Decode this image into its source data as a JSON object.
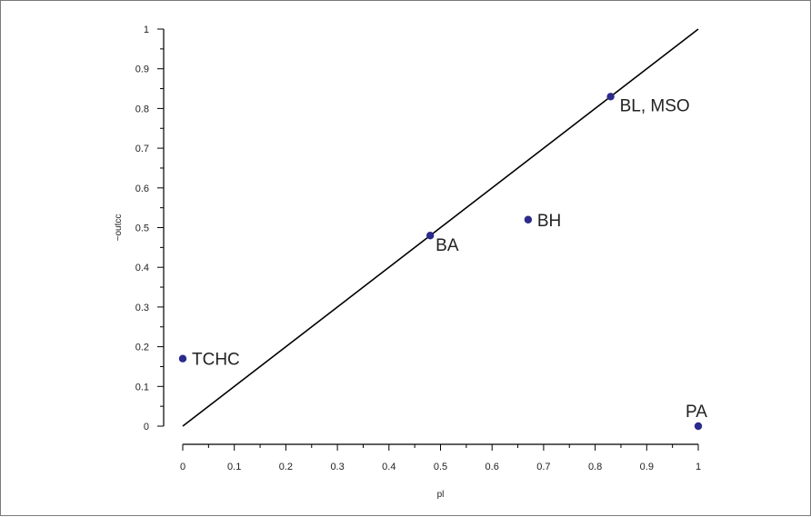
{
  "chart_data": {
    "type": "scatter",
    "xlabel": "pl",
    "ylabel": "~outcc",
    "xlim": [
      0,
      1
    ],
    "ylim": [
      0,
      1
    ],
    "x_ticks": [
      "0",
      "0.1",
      "0.2",
      "0.3",
      "0.4",
      "0.5",
      "0.6",
      "0.7",
      "0.8",
      "0.9",
      "1"
    ],
    "y_ticks": [
      "0",
      "0.1",
      "0.2",
      "0.3",
      "0.4",
      "0.5",
      "0.6",
      "0.7",
      "0.8",
      "0.9",
      "1"
    ],
    "points": [
      {
        "label": "TCHC",
        "x": 0.0,
        "y": 0.17
      },
      {
        "label": "BA",
        "x": 0.48,
        "y": 0.48
      },
      {
        "label": "BH",
        "x": 0.67,
        "y": 0.52
      },
      {
        "label": "BL, MSO",
        "x": 0.83,
        "y": 0.83
      },
      {
        "label": "PA",
        "x": 1.0,
        "y": 0.0
      }
    ],
    "reference_line": {
      "from": [
        0,
        0
      ],
      "to": [
        1,
        1
      ]
    },
    "grid": false,
    "colors": {
      "point": "#2b2b8c",
      "line": "#000000"
    }
  }
}
